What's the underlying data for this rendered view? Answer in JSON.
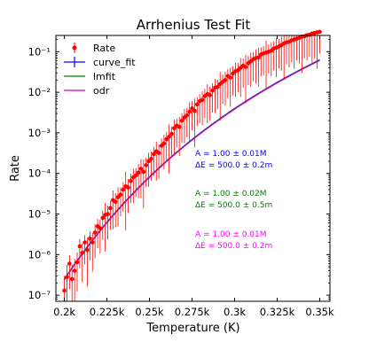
{
  "chart_data": {
    "type": "scatter",
    "title": "Arrhenius Test Fit",
    "xlabel": "Temperature (K)",
    "ylabel": "Rate",
    "xlim": [
      195,
      356
    ],
    "ylim_log10": [
      -7.15,
      -0.6
    ],
    "yscale": "log",
    "x_ticks": [
      {
        "value": 200,
        "label": "0.2k"
      },
      {
        "value": 225,
        "label": "0.225k"
      },
      {
        "value": 250,
        "label": "0.25k"
      },
      {
        "value": 275,
        "label": "0.275k"
      },
      {
        "value": 300,
        "label": "0.3k"
      },
      {
        "value": 325,
        "label": "0.325k"
      },
      {
        "value": 350,
        "label": "0.35k"
      }
    ],
    "y_ticks": [
      {
        "exp": -7,
        "label": "10⁻⁷"
      },
      {
        "exp": -6,
        "label": "10⁻⁶"
      },
      {
        "exp": -5,
        "label": "10⁻⁵"
      },
      {
        "exp": -4,
        "label": "10⁻⁴"
      },
      {
        "exp": -3,
        "label": "10⁻³"
      },
      {
        "exp": -2,
        "label": "10⁻²"
      },
      {
        "exp": -1,
        "label": "10⁻¹"
      }
    ],
    "legend_position": "top-left",
    "grid": false,
    "model": {
      "A": 1000000,
      "dE": 500,
      "x_from": 200,
      "x_to": 350
    },
    "series": [
      {
        "name": "Rate",
        "kind": "errorbar",
        "color": "#ff0000"
      },
      {
        "name": "curve_fit",
        "kind": "line",
        "color": "#0000ff"
      },
      {
        "name": "lmfit",
        "kind": "line",
        "color": "#008000"
      },
      {
        "name": "odr",
        "kind": "line",
        "color": "#cc00cc"
      }
    ],
    "annotations": [
      {
        "line1": "A = 1.00 ± 0.01M",
        "line2": "ΔE = 500.0 ± 0.2m",
        "color": "#0000ff"
      },
      {
        "line1": "A = 1.00 ± 0.02M",
        "line2": "ΔE = 500.0 ± 0.5m",
        "color": "#008000"
      },
      {
        "line1": "A = 1.00 ± 0.01M",
        "line2": "ΔE = 500.0 ± 0.2m",
        "color": "#ff00ff"
      }
    ],
    "points": [
      {
        "x": 200.0,
        "y": 1.3e-07,
        "e": 0.6
      },
      {
        "x": 201.5,
        "y": 2.8e-07,
        "e": 0.5
      },
      {
        "x": 203.0,
        "y": 6e-07,
        "e": 0.35
      },
      {
        "x": 204.5,
        "y": 2.5e-07,
        "e": 0.6
      },
      {
        "x": 206.0,
        "y": 4e-07,
        "e": 0.5
      },
      {
        "x": 207.5,
        "y": 6.5e-07,
        "e": 0.4
      },
      {
        "x": 209.0,
        "y": 1.6e-06,
        "e": 0.3
      },
      {
        "x": 210.5,
        "y": 1.1e-06,
        "e": 0.4
      },
      {
        "x": 212.0,
        "y": 2e-06,
        "e": 0.3
      },
      {
        "x": 213.5,
        "y": 1.3e-06,
        "e": 0.5
      },
      {
        "x": 215.0,
        "y": 2.5e-06,
        "e": 0.3
      },
      {
        "x": 216.5,
        "y": 2e-06,
        "e": 0.4
      },
      {
        "x": 218.0,
        "y": 3.5e-06,
        "e": 0.35
      },
      {
        "x": 219.5,
        "y": 5e-06,
        "e": 0.3
      },
      {
        "x": 221.0,
        "y": 4.5e-06,
        "e": 0.35
      },
      {
        "x": 222.5,
        "y": 8e-06,
        "e": 0.3
      },
      {
        "x": 224.0,
        "y": 9.5e-06,
        "e": 0.5
      },
      {
        "x": 225.5,
        "y": 1e-05,
        "e": 0.35
      },
      {
        "x": 227.0,
        "y": 1.4e-05,
        "e": 0.3
      },
      {
        "x": 228.5,
        "y": 2.2e-05,
        "e": 0.4
      },
      {
        "x": 230.0,
        "y": 2e-05,
        "e": 0.35
      },
      {
        "x": 231.5,
        "y": 2.6e-05,
        "e": 0.4
      },
      {
        "x": 233.0,
        "y": 3e-05,
        "e": 0.3
      },
      {
        "x": 234.5,
        "y": 4e-05,
        "e": 0.3
      },
      {
        "x": 236.0,
        "y": 4.8e-05,
        "e": 0.6
      },
      {
        "x": 237.5,
        "y": 4.5e-05,
        "e": 0.35
      },
      {
        "x": 239.0,
        "y": 6.5e-05,
        "e": 0.3
      },
      {
        "x": 240.5,
        "y": 8e-05,
        "e": 0.35
      },
      {
        "x": 242.0,
        "y": 9e-05,
        "e": 0.3
      },
      {
        "x": 243.5,
        "y": 0.000105,
        "e": 0.35
      },
      {
        "x": 245.0,
        "y": 0.00013,
        "e": 0.4
      },
      {
        "x": 246.5,
        "y": 0.00011,
        "e": 0.5
      },
      {
        "x": 248.0,
        "y": 0.00016,
        "e": 0.3
      },
      {
        "x": 249.5,
        "y": 0.0002,
        "e": 0.35
      },
      {
        "x": 251.0,
        "y": 0.00023,
        "e": 0.3
      },
      {
        "x": 252.5,
        "y": 0.0003,
        "e": 0.3
      },
      {
        "x": 254.0,
        "y": 0.00035,
        "e": 0.4
      },
      {
        "x": 255.5,
        "y": 0.00032,
        "e": 0.35
      },
      {
        "x": 257.0,
        "y": 0.00048,
        "e": 0.3
      },
      {
        "x": 258.5,
        "y": 0.00055,
        "e": 0.35
      },
      {
        "x": 260.0,
        "y": 0.0007,
        "e": 0.3
      },
      {
        "x": 261.5,
        "y": 0.0008,
        "e": 0.5
      },
      {
        "x": 263.0,
        "y": 0.00095,
        "e": 0.3
      },
      {
        "x": 264.5,
        "y": 0.0013,
        "e": 0.35
      },
      {
        "x": 266.0,
        "y": 0.0015,
        "e": 0.3
      },
      {
        "x": 267.5,
        "y": 0.0014,
        "e": 0.4
      },
      {
        "x": 269.0,
        "y": 0.002,
        "e": 0.3
      },
      {
        "x": 270.5,
        "y": 0.0024,
        "e": 0.35
      },
      {
        "x": 272.0,
        "y": 0.0027,
        "e": 0.3
      },
      {
        "x": 273.5,
        "y": 0.0033,
        "e": 0.4
      },
      {
        "x": 275.0,
        "y": 0.004,
        "e": 0.3
      },
      {
        "x": 276.5,
        "y": 0.0035,
        "e": 0.5
      },
      {
        "x": 278.0,
        "y": 0.005,
        "e": 0.3
      },
      {
        "x": 279.5,
        "y": 0.006,
        "e": 0.3
      },
      {
        "x": 281.0,
        "y": 0.0065,
        "e": 0.35
      },
      {
        "x": 282.5,
        "y": 0.008,
        "e": 0.3
      },
      {
        "x": 284.0,
        "y": 0.009,
        "e": 0.4
      },
      {
        "x": 285.5,
        "y": 0.0085,
        "e": 0.35
      },
      {
        "x": 287.0,
        "y": 0.011,
        "e": 0.3
      },
      {
        "x": 288.5,
        "y": 0.013,
        "e": 0.35
      },
      {
        "x": 290.0,
        "y": 0.0135,
        "e": 0.3
      },
      {
        "x": 291.5,
        "y": 0.016,
        "e": 0.5
      },
      {
        "x": 293.0,
        "y": 0.018,
        "e": 0.3
      },
      {
        "x": 294.5,
        "y": 0.02,
        "e": 0.35
      },
      {
        "x": 296.0,
        "y": 0.025,
        "e": 0.3
      },
      {
        "x": 297.5,
        "y": 0.023,
        "e": 0.4
      },
      {
        "x": 299.0,
        "y": 0.029,
        "e": 0.3
      },
      {
        "x": 300.5,
        "y": 0.033,
        "e": 0.35
      },
      {
        "x": 302.0,
        "y": 0.035,
        "e": 0.3
      },
      {
        "x": 303.5,
        "y": 0.04,
        "e": 0.4
      },
      {
        "x": 305.0,
        "y": 0.045,
        "e": 0.3
      },
      {
        "x": 306.5,
        "y": 0.042,
        "e": 0.5
      },
      {
        "x": 308.0,
        "y": 0.052,
        "e": 0.3
      },
      {
        "x": 309.5,
        "y": 0.058,
        "e": 0.35
      },
      {
        "x": 311.0,
        "y": 0.065,
        "e": 0.3
      },
      {
        "x": 312.5,
        "y": 0.07,
        "e": 0.35
      },
      {
        "x": 314.0,
        "y": 0.072,
        "e": 0.4
      },
      {
        "x": 315.5,
        "y": 0.085,
        "e": 0.3
      },
      {
        "x": 317.0,
        "y": 0.09,
        "e": 0.3
      },
      {
        "x": 318.5,
        "y": 0.095,
        "e": 0.5
      },
      {
        "x": 320.0,
        "y": 0.1,
        "e": 0.3
      },
      {
        "x": 321.5,
        "y": 0.105,
        "e": 0.35
      },
      {
        "x": 323.0,
        "y": 0.12,
        "e": 0.3
      },
      {
        "x": 324.5,
        "y": 0.125,
        "e": 0.4
      },
      {
        "x": 326.0,
        "y": 0.135,
        "e": 0.3
      },
      {
        "x": 327.5,
        "y": 0.145,
        "e": 0.35
      },
      {
        "x": 329.0,
        "y": 0.16,
        "e": 0.5
      },
      {
        "x": 330.5,
        "y": 0.17,
        "e": 0.3
      },
      {
        "x": 332.0,
        "y": 0.175,
        "e": 0.35
      },
      {
        "x": 333.5,
        "y": 0.19,
        "e": 0.3
      },
      {
        "x": 335.0,
        "y": 0.2,
        "e": 0.4
      },
      {
        "x": 336.5,
        "y": 0.21,
        "e": 0.3
      },
      {
        "x": 338.0,
        "y": 0.22,
        "e": 0.35
      },
      {
        "x": 339.5,
        "y": 0.235,
        "e": 0.5
      },
      {
        "x": 341.0,
        "y": 0.24,
        "e": 0.3
      },
      {
        "x": 342.5,
        "y": 0.255,
        "e": 0.35
      },
      {
        "x": 344.0,
        "y": 0.26,
        "e": 0.3
      },
      {
        "x": 345.5,
        "y": 0.28,
        "e": 0.4
      },
      {
        "x": 347.0,
        "y": 0.29,
        "e": 0.35
      },
      {
        "x": 348.5,
        "y": 0.3,
        "e": 0.5
      },
      {
        "x": 350.0,
        "y": 0.31,
        "e": 0.3
      }
    ]
  }
}
